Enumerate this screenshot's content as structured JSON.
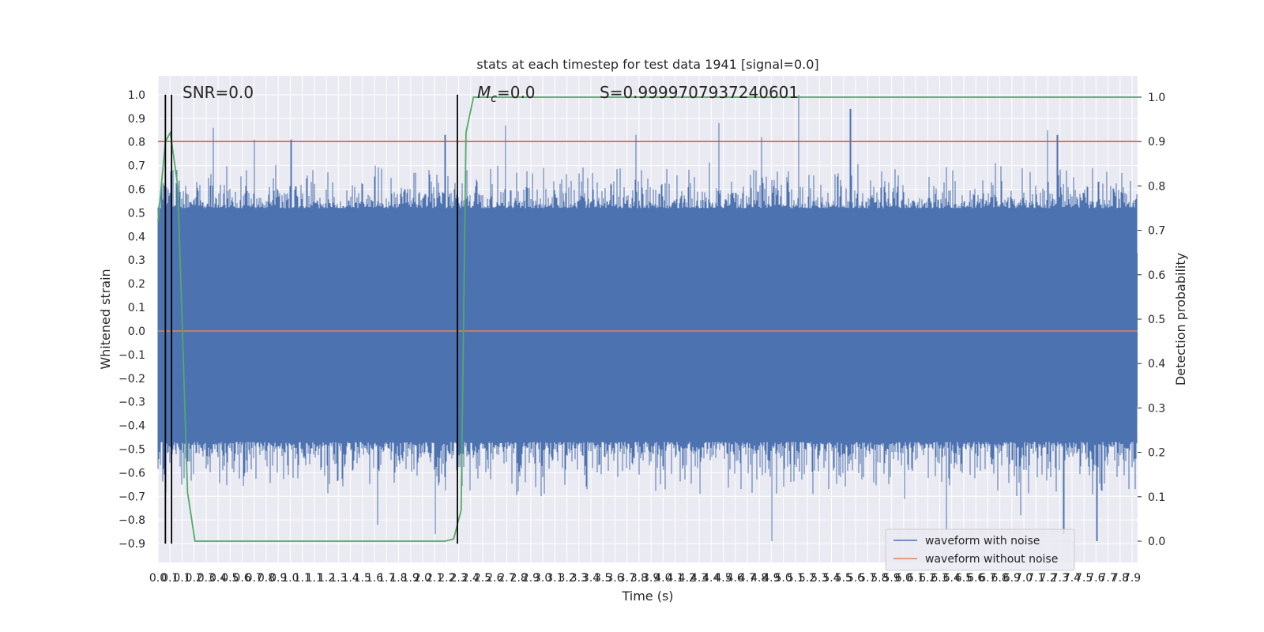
{
  "chart_data": {
    "type": "line",
    "title": "stats at each timestep for test data 1941 [signal=0.0]",
    "xlabel": "Time (s)",
    "ylabel": "Whitened strain",
    "y2label": "Detection probability",
    "xlim": [
      0.0,
      7.95
    ],
    "ylim": [
      -0.98,
      1.08
    ],
    "y2lim": [
      -0.048,
      1.048
    ],
    "x_tick_labels": [
      "0.0",
      "0.1",
      "0.1",
      "0.2",
      "0.3",
      "0.4",
      "0.5",
      "0.6",
      "0.7",
      "0.8",
      "0.9",
      "1.0",
      "1.1",
      "1.1",
      "1.2",
      "1.3",
      "1.4",
      "1.5",
      "1.6",
      "1.7",
      "1.8",
      "1.9",
      "2.0",
      "2.1",
      "2.2",
      "2.3",
      "2.4",
      "2.5",
      "2.6",
      "2.7",
      "2.8",
      "2.9",
      "3.0",
      "3.1",
      "3.2",
      "3.3",
      "3.4",
      "3.5",
      "3.6",
      "3.7",
      "3.8",
      "3.9",
      "4.0",
      "4.1",
      "4.2",
      "4.3",
      "4.4",
      "4.5",
      "4.6",
      "4.7",
      "4.8",
      "4.9",
      "5.0",
      "5.1",
      "5.2",
      "5.3",
      "5.4",
      "5.5",
      "5.6",
      "5.7",
      "5.8",
      "5.9",
      "6.0",
      "6.1",
      "6.2",
      "6.3",
      "6.4",
      "6.5",
      "6.6",
      "6.7",
      "6.8",
      "6.9",
      "7.0",
      "7.1",
      "7.2",
      "7.3",
      "7.4",
      "7.5",
      "7.6",
      "7.7",
      "7.8",
      "7.9"
    ],
    "y_ticks": [
      -0.9,
      -0.8,
      -0.7,
      -0.6,
      -0.5,
      -0.4,
      -0.3,
      -0.2,
      -0.1,
      0.0,
      0.1,
      0.2,
      0.3,
      0.4,
      0.5,
      0.6,
      0.7,
      0.8,
      0.9,
      1.0
    ],
    "y_tick_labels": [
      "−0.9",
      "−0.8",
      "−0.7",
      "−0.6",
      "−0.5",
      "−0.4",
      "−0.3",
      "−0.2",
      "−0.1",
      "0.0",
      "0.1",
      "0.2",
      "0.3",
      "0.4",
      "0.5",
      "0.6",
      "0.7",
      "0.8",
      "0.9",
      "1.0"
    ],
    "y2_ticks": [
      0.0,
      0.1,
      0.2,
      0.3,
      0.4,
      0.5,
      0.6,
      0.7,
      0.8,
      0.9,
      1.0
    ],
    "y2_tick_labels": [
      "0.0",
      "0.1",
      "0.2",
      "0.3",
      "0.4",
      "0.5",
      "0.6",
      "0.7",
      "0.8",
      "0.9",
      "1.0"
    ],
    "grid": true,
    "legend": {
      "position": "lower-right",
      "entries": [
        "waveform with noise",
        "waveform without noise"
      ]
    },
    "annotations": {
      "snr": "SNR=0.0",
      "mc_symbol": "M",
      "mc_sub": "c",
      "mc_value": "=0.0",
      "s": "S=0.9999707937240601"
    },
    "series": [
      {
        "name": "waveform with noise",
        "color": "#4c72b0",
        "style": "noise",
        "range": [
          0.0,
          7.95
        ],
        "upper_typical": [
          0.33,
          0.52
        ],
        "lower_typical": [
          -0.47,
          -0.32
        ],
        "max": 1.0,
        "min": -0.89
      },
      {
        "name": "waveform without noise",
        "color": "#dd8452",
        "x": [
          0.0,
          7.95
        ],
        "y": [
          0.0,
          0.0
        ]
      },
      {
        "color": "#55a868",
        "axis": "y2",
        "x": [
          0.0,
          0.06,
          0.1,
          0.16,
          0.24,
          0.3,
          0.4,
          0.6,
          1.0,
          1.5,
          2.0,
          2.33,
          2.4,
          2.46,
          2.5,
          2.56,
          2.62,
          7.95
        ],
        "y": [
          0.72,
          0.9,
          0.92,
          0.8,
          0.11,
          0.0,
          0.0,
          0.0,
          0.0,
          0.0,
          0.0,
          0.0,
          0.005,
          0.07,
          0.92,
          1.0,
          1.0,
          1.0
        ]
      }
    ],
    "threshold": {
      "color": "#c44e52",
      "axis": "y2",
      "value": 0.9
    },
    "vlines": {
      "color": "#000000",
      "x": [
        0.06,
        0.11,
        2.43
      ],
      "y_from": -0.9,
      "y_to": 1.0
    }
  }
}
